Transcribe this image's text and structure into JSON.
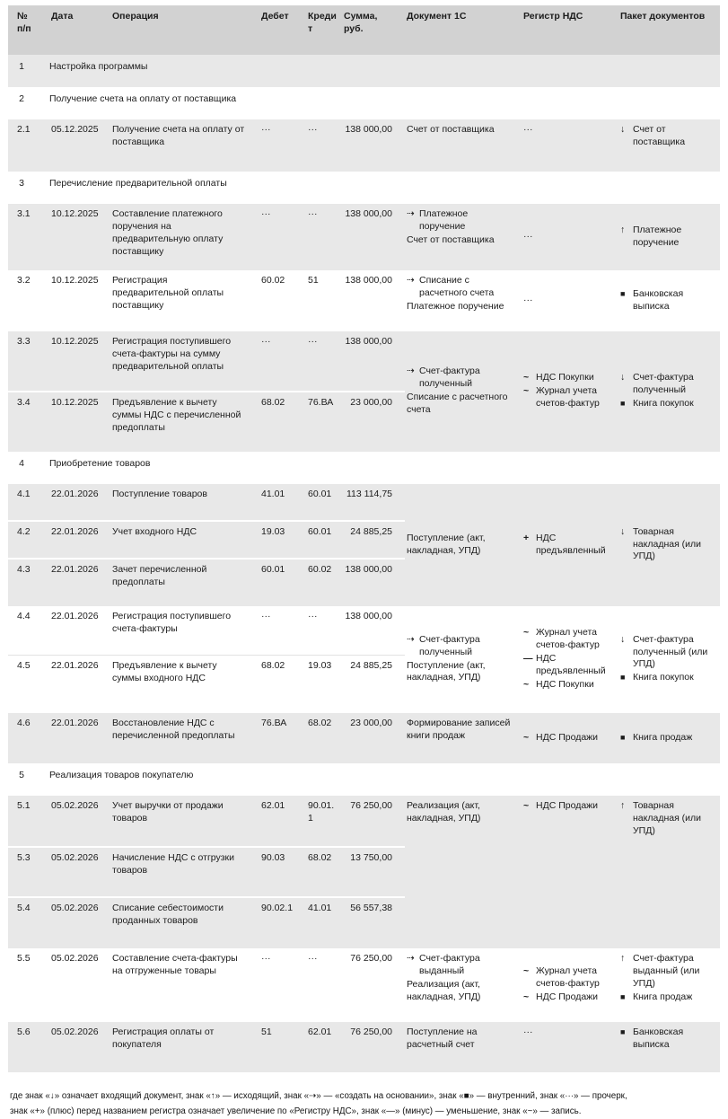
{
  "table": {
    "col_headers": {
      "num": "№\nп/п",
      "date": "Дата",
      "op": "Операция",
      "debit": "Дебет",
      "credit": "Кредит",
      "sum": "Сумма,\nруб.",
      "doc": "Документ 1С",
      "reg": "Регистр НДС",
      "pack": "Пакет документов"
    },
    "sections": {
      "s1": {
        "num": "1",
        "title": "Настройка программы"
      },
      "s2": {
        "num": "2",
        "title": "Получение счета на оплату от поставщика"
      },
      "s3": {
        "num": "3",
        "title": "Перечисление предварительной оплаты"
      },
      "s4": {
        "num": "4",
        "title": "Приобретение товаров"
      },
      "s5": {
        "num": "5",
        "title": "Реализация товаров покупателю"
      }
    },
    "rows": {
      "r21": {
        "num": "2.1",
        "date": "05.12.2025",
        "op": "Получение счета на оплату от поставщика",
        "debit": "···",
        "credit": "···",
        "sum": "138 000,00",
        "doc": [
          {
            "text": "Счет от поставщика"
          }
        ],
        "reg": "···",
        "pack": [
          {
            "icon": "incoming-arrow-icon",
            "text": "Счет от поставщика"
          }
        ]
      },
      "r31": {
        "num": "3.1",
        "date": "10.12.2025",
        "op": "Составление платежного поручения на предварительную оплату поставщику",
        "debit": "···",
        "credit": "···",
        "sum": "138 000,00",
        "doc": [
          {
            "icon": "create-from-icon",
            "text": "Платежное поручение"
          },
          {
            "text": "Счет от поставщика"
          }
        ],
        "reg": "···",
        "pack": [
          {
            "icon": "outgoing-arrow-icon",
            "text": "Платежное поручение"
          }
        ]
      },
      "r32": {
        "num": "3.2",
        "date": "10.12.2025",
        "op": "Регистрация предварительной оплаты поставщику",
        "debit": "60.02",
        "credit": "51",
        "sum": "138 000,00",
        "doc": [
          {
            "icon": "create-from-icon",
            "text": "Списание с расчетного счета"
          },
          {
            "text": "Платежное поручение"
          }
        ],
        "reg": "···",
        "pack": [
          {
            "icon": "internal-icon",
            "text": "Банковская выписка"
          }
        ]
      },
      "r33": {
        "num": "3.3",
        "date": "10.12.2025",
        "op": "Регистрация поступившего счета-фактуры на сумму предварительной оплаты",
        "debit": "···",
        "credit": "···",
        "sum": "138 000,00"
      },
      "r34": {
        "num": "3.4",
        "date": "10.12.2025",
        "op": "Предъявление к вычету суммы НДС с перечисленной предоплаты",
        "debit": "68.02",
        "credit": "76.ВА",
        "sum": "23 000,00"
      },
      "r41": {
        "num": "4.1",
        "date": "22.01.2026",
        "op": "Поступление товаров",
        "debit": "41.01",
        "credit": "60.01",
        "sum": "113 114,75"
      },
      "r42": {
        "num": "4.2",
        "date": "22.01.2026",
        "op": "Учет входного НДС",
        "debit": "19.03",
        "credit": "60.01",
        "sum": "24 885,25"
      },
      "r43": {
        "num": "4.3",
        "date": "22.01.2026",
        "op": "Зачет перечисленной предоплаты",
        "debit": "60.01",
        "credit": "60.02",
        "sum": "138 000,00"
      },
      "r44": {
        "num": "4.4",
        "date": "22.01.2026",
        "op": "Регистрация поступившего счета-фактуры",
        "debit": "···",
        "credit": "···",
        "sum": "138 000,00"
      },
      "r45": {
        "num": "4.5",
        "date": "22.01.2026",
        "op": "Предъявление к вычету суммы входного НДС",
        "debit": "68.02",
        "credit": "19.03",
        "sum": "24 885,25"
      },
      "r46": {
        "num": "4.6",
        "date": "22.01.2026",
        "op": "Восстановление НДС с перечисленной предоплаты",
        "debit": "76.ВА",
        "credit": "68.02",
        "sum": "23 000,00",
        "doc": [
          {
            "text": "Формирование записей книги продаж"
          }
        ],
        "reg": [
          {
            "icon": "record-icon",
            "text": "НДС Продажи"
          }
        ],
        "pack": [
          {
            "icon": "internal-icon",
            "text": "Книга продаж"
          }
        ]
      },
      "r51": {
        "num": "5.1",
        "date": "05.02.2026",
        "op": "Учет выручки от продажи товаров",
        "debit": "62.01",
        "credit": "90.01.1",
        "sum": "76 250,00"
      },
      "r53": {
        "num": "5.3",
        "date": "05.02.2026",
        "op": "Начисление НДС с отгрузки товаров",
        "debit": "90.03",
        "credit": "68.02",
        "sum": "13 750,00"
      },
      "r54": {
        "num": "5.4",
        "date": "05.02.2026",
        "op": "Списание себестоимости проданных товаров",
        "debit": "90.02.1",
        "credit": "41.01",
        "sum": "56 557,38"
      },
      "r55": {
        "num": "5.5",
        "date": "05.02.2026",
        "op": "Составление счета-фактуры на отгруженные товары",
        "debit": "···",
        "credit": "···",
        "sum": "76 250,00",
        "doc": [
          {
            "icon": "create-from-icon",
            "text": "Счет-фактура выданный"
          },
          {
            "text": "Реализация (акт, накладная, УПД)"
          }
        ],
        "reg": [
          {
            "icon": "record-icon",
            "text": "Журнал учета счетов-фактур"
          },
          {
            "icon": "record-icon",
            "text": "НДС Продажи"
          }
        ],
        "pack": [
          {
            "icon": "outgoing-arrow-icon",
            "text": "Счет-фактура выданный (или УПД)"
          },
          {
            "icon": "internal-icon",
            "text": "Книга продаж"
          }
        ]
      },
      "r56": {
        "num": "5.6",
        "date": "05.02.2026",
        "op": "Регистрация оплаты от покупателя",
        "debit": "51",
        "credit": "62.01",
        "sum": "76 250,00",
        "doc": [
          {
            "text": "Поступление на расчетный счет"
          }
        ],
        "reg": "···",
        "pack": [
          {
            "icon": "internal-icon",
            "text": "Банковская выписка"
          }
        ]
      }
    },
    "groups": {
      "g33": {
        "doc": [
          {
            "icon": "create-from-icon",
            "text": "Счет-фактура полученный"
          },
          {
            "text": "Списание с расчетного счета"
          }
        ],
        "reg": [
          {
            "icon": "record-icon",
            "text": "НДС Покупки"
          },
          {
            "icon": "record-icon",
            "text": "Журнал учета счетов-фактур"
          }
        ],
        "pack": [
          {
            "icon": "incoming-arrow-icon",
            "text": "Счет-фактура полученный"
          },
          {
            "icon": "internal-icon",
            "text": "Книга покупок"
          }
        ]
      },
      "g41": {
        "doc": [
          {
            "text": "Поступление (акт, накладная, УПД)"
          }
        ],
        "reg": [
          {
            "icon": "plus-icon",
            "text": "НДС предъявленный"
          }
        ],
        "pack": [
          {
            "icon": "incoming-arrow-icon",
            "text": "Товарная накладная (или УПД)"
          }
        ]
      },
      "g44": {
        "doc": [
          {
            "icon": "create-from-icon",
            "text": "Счет-фактура полученный"
          },
          {
            "text": "Поступление (акт, накладная, УПД)"
          }
        ],
        "reg": [
          {
            "icon": "record-icon",
            "text": "Журнал учета счетов-фактур"
          },
          {
            "icon": "minus-icon",
            "text": "НДС предъявленный"
          },
          {
            "icon": "record-icon",
            "text": "НДС Покупки"
          }
        ],
        "pack": [
          {
            "icon": "incoming-arrow-icon",
            "text": "Счет-фактура полученный (или УПД)"
          },
          {
            "icon": "internal-icon",
            "text": "Книга покупок"
          }
        ]
      },
      "g51": {
        "doc": [
          {
            "text": "Реализация (акт, накладная, УПД)"
          }
        ],
        "reg": [
          {
            "icon": "record-icon",
            "text": "НДС Продажи"
          }
        ],
        "pack": [
          {
            "icon": "outgoing-arrow-icon",
            "text": "Товарная накладная (или УПД)"
          }
        ]
      }
    }
  },
  "footnote": {
    "line1": "где знак «↓» означает входящий документ, знак «↑» — исходящий, знак «⇢» — «создать на основании», знак «■» — внутренний, знак «···» — прочерк,",
    "line2": "знак «+» (плюс) перед названием регистра означает увеличение по «Регистру НДС», знак «—» (минус) — уменьшение, знак «~» — запись."
  }
}
